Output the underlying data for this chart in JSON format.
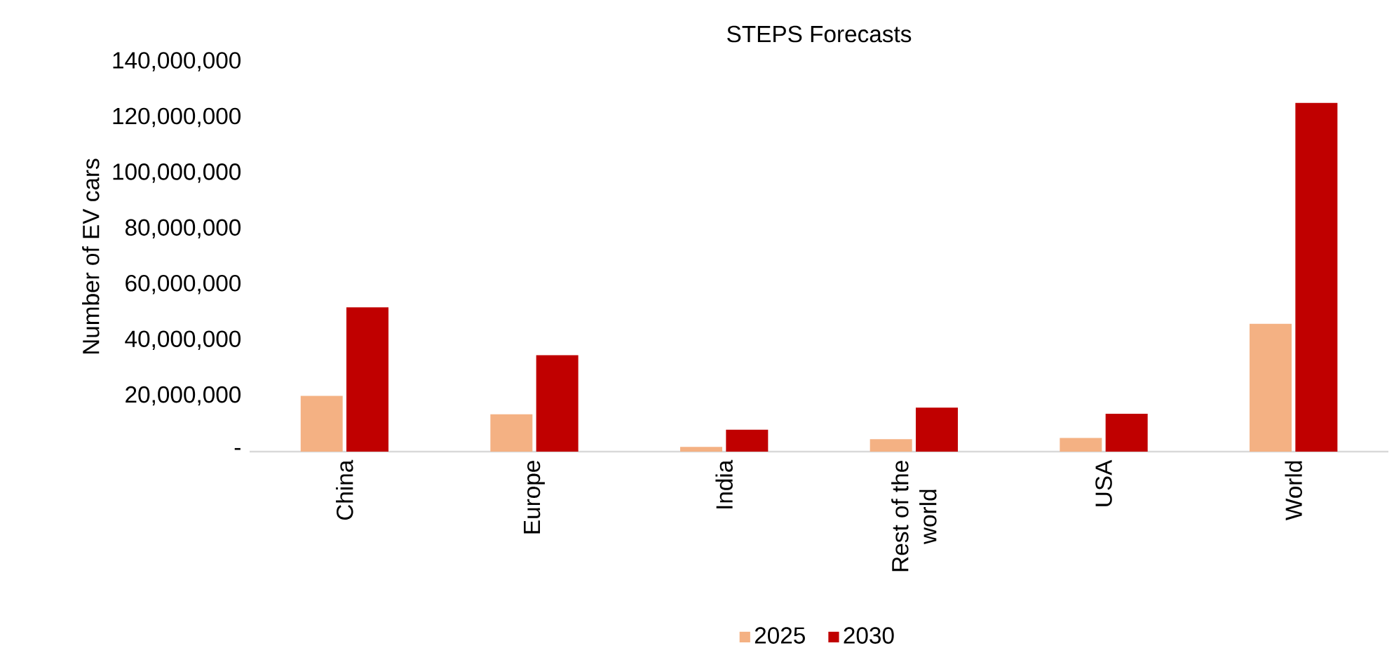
{
  "chart_data": {
    "type": "bar",
    "title": "STEPS Forecasts",
    "ylabel": "Number of EV cars",
    "categories": [
      "China",
      "Europe",
      "India",
      "Rest of the world",
      "USA",
      "World"
    ],
    "series": [
      {
        "name": "2025",
        "color": "#f4b183",
        "values": [
          20000000,
          13400000,
          1700000,
          4500000,
          4900000,
          45900000
        ]
      },
      {
        "name": "2030",
        "color": "#c00000",
        "values": [
          51800000,
          34600000,
          7900000,
          15800000,
          13600000,
          125200000
        ]
      }
    ],
    "ylim": [
      0,
      140000000
    ],
    "yticks": [
      {
        "value": 0,
        "label": "-"
      },
      {
        "value": 20000000,
        "label": "20,000,000"
      },
      {
        "value": 40000000,
        "label": "40,000,000"
      },
      {
        "value": 60000000,
        "label": "60,000,000"
      },
      {
        "value": 80000000,
        "label": "80,000,000"
      },
      {
        "value": 100000000,
        "label": "100,000,000"
      },
      {
        "value": 120000000,
        "label": "120,000,000"
      },
      {
        "value": 140000000,
        "label": "140,000,000"
      }
    ],
    "legend": "bottom"
  }
}
